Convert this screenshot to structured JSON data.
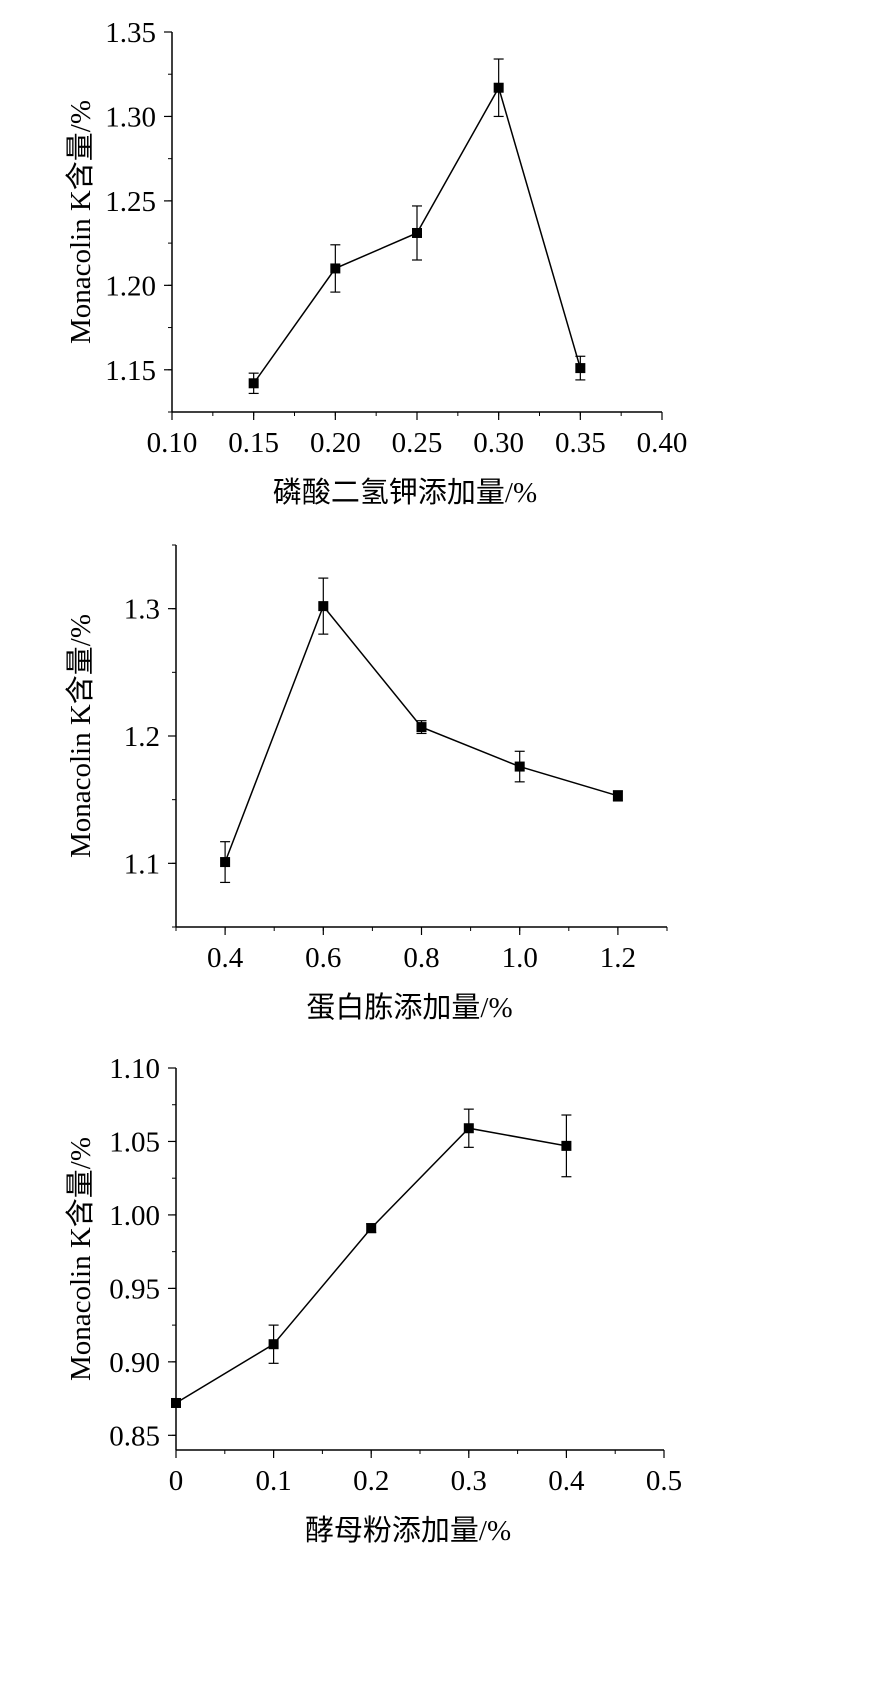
{
  "chart_data": [
    {
      "type": "line",
      "title": "",
      "xlabel": "磷酸二氢钾添加量/%",
      "ylabel": "Monacolin K含量/%",
      "xlim": [
        0.1,
        0.4
      ],
      "ylim": [
        1.125,
        1.35
      ],
      "x_ticks": [
        0.1,
        0.15,
        0.2,
        0.25,
        0.3,
        0.35,
        0.4
      ],
      "x_tick_labels": [
        "0.10",
        "0.15",
        "0.20",
        "0.25",
        "0.30",
        "0.35",
        "0.40"
      ],
      "y_ticks": [
        1.15,
        1.2,
        1.25,
        1.3,
        1.35
      ],
      "y_tick_labels": [
        "1.15",
        "1.20",
        "1.25",
        "1.30",
        "1.35"
      ],
      "x_minor_step": 0.025,
      "y_minor_step": 0.025,
      "series": [
        {
          "name": "Monacolin K",
          "x": [
            0.15,
            0.2,
            0.25,
            0.3,
            0.35
          ],
          "y": [
            1.142,
            1.21,
            1.231,
            1.317,
            1.151
          ],
          "err": [
            0.006,
            0.014,
            0.016,
            0.017,
            0.007
          ]
        }
      ]
    },
    {
      "type": "line",
      "title": "",
      "xlabel": "蛋白胨添加量/%",
      "ylabel": "Monacolin K含量/%",
      "xlim": [
        0.3,
        1.3
      ],
      "ylim": [
        1.05,
        1.35
      ],
      "x_ticks": [
        0.4,
        0.6,
        0.8,
        1.0,
        1.2
      ],
      "x_tick_labels": [
        "0.4",
        "0.6",
        "0.8",
        "1.0",
        "1.2"
      ],
      "y_ticks": [
        1.1,
        1.2,
        1.3
      ],
      "y_tick_labels": [
        "1.1",
        "1.2",
        "1.3"
      ],
      "x_minor_step": 0.1,
      "y_minor_step": 0.05,
      "series": [
        {
          "name": "Monacolin K",
          "x": [
            0.4,
            0.6,
            0.8,
            1.0,
            1.2
          ],
          "y": [
            1.101,
            1.302,
            1.207,
            1.176,
            1.153
          ],
          "err": [
            0.016,
            0.022,
            0.005,
            0.012,
            0.004
          ]
        }
      ]
    },
    {
      "type": "line",
      "title": "",
      "xlabel": "酵母粉添加量/%",
      "ylabel": "Monacolin K含量/%",
      "xlim": [
        0,
        0.5
      ],
      "ylim": [
        0.84,
        1.1
      ],
      "x_ticks": [
        0,
        0.1,
        0.2,
        0.3,
        0.4,
        0.5
      ],
      "x_tick_labels": [
        "0",
        "0.1",
        "0.2",
        "0.3",
        "0.4",
        "0.5"
      ],
      "y_ticks": [
        0.85,
        0.9,
        0.95,
        1.0,
        1.05,
        1.1
      ],
      "y_tick_labels": [
        "0.85",
        "0.90",
        "0.95",
        "1.00",
        "1.05",
        "1.10"
      ],
      "x_minor_step": 0.05,
      "y_minor_step": 0.025,
      "series": [
        {
          "name": "Monacolin K",
          "x": [
            0,
            0.1,
            0.2,
            0.3,
            0.4
          ],
          "y": [
            0.872,
            0.912,
            0.991,
            1.059,
            1.047
          ],
          "err": [
            0.002,
            0.013,
            0.003,
            0.013,
            0.021
          ]
        }
      ]
    }
  ]
}
